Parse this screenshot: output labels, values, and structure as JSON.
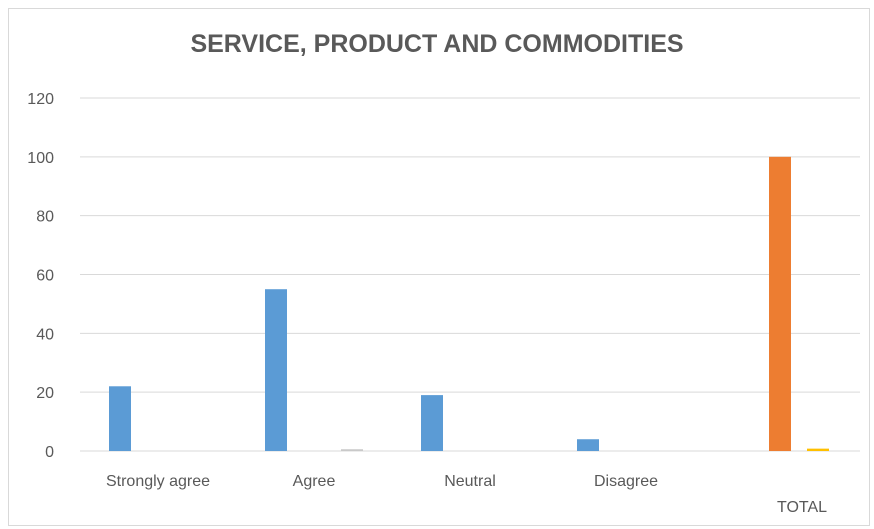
{
  "chart_data": {
    "type": "bar",
    "title": "SERVICE, PRODUCT AND COMMODITIES",
    "xlabel": "",
    "ylabel": "",
    "categories": [
      "Strongly agree",
      "Agree",
      "Neutral",
      "Disagree",
      "TOTAL"
    ],
    "series": [
      {
        "values": [
          22,
          55,
          19,
          4,
          null
        ],
        "color": "#5b9bd5"
      },
      {
        "values": [
          null,
          null,
          null,
          null,
          100
        ],
        "color": "#ed7d31"
      },
      {
        "values": [
          0,
          0.6,
          0,
          0,
          0.8
        ],
        "color": "#c9c9c9"
      }
    ],
    "total_small_bar_color": "#ffc000",
    "ylim": [
      0,
      120
    ],
    "yticks": [
      0,
      20,
      40,
      60,
      80,
      100,
      120
    ],
    "grid": true,
    "legend": "none"
  }
}
